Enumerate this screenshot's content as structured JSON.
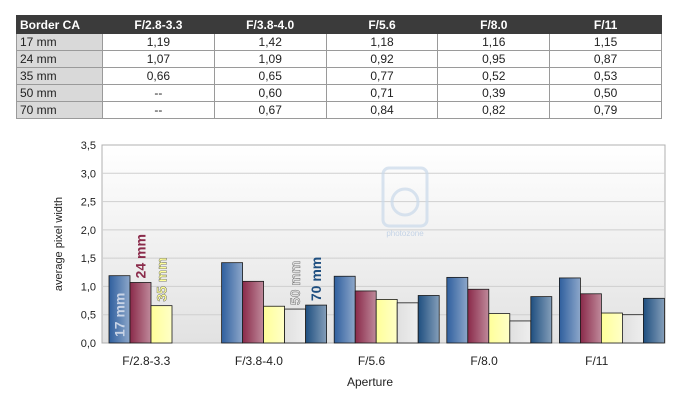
{
  "table": {
    "header": [
      "Border CA",
      "F/2.8-3.3",
      "F/3.8-4.0",
      "F/5.6",
      "F/8.0",
      "F/11"
    ],
    "rows": [
      [
        "17 mm",
        "1,19",
        "1,42",
        "1,18",
        "1,16",
        "1,15"
      ],
      [
        "24 mm",
        "1,07",
        "1,09",
        "0,92",
        "0,95",
        "0,87"
      ],
      [
        "35 mm",
        "0,66",
        "0,65",
        "0,77",
        "0,52",
        "0,53"
      ],
      [
        "50 mm",
        "--",
        "0,60",
        "0,71",
        "0,39",
        "0,50"
      ],
      [
        "70 mm",
        "--",
        "0,67",
        "0,84",
        "0,82",
        "0,79"
      ]
    ]
  },
  "chart_data": {
    "type": "bar",
    "categories": [
      "F/2.8-3.3",
      "F/3.8-4.0",
      "F/5.6",
      "F/8.0",
      "F/11"
    ],
    "series": [
      {
        "name": "17 mm",
        "values": [
          1.19,
          1.42,
          1.18,
          1.16,
          1.15
        ],
        "color": "#2f5f9e"
      },
      {
        "name": "24 mm",
        "values": [
          1.07,
          1.09,
          0.92,
          0.95,
          0.87
        ],
        "color": "#8a2a4a"
      },
      {
        "name": "35 mm",
        "values": [
          0.66,
          0.65,
          0.77,
          0.52,
          0.53
        ],
        "color": "#ffff99"
      },
      {
        "name": "50 mm",
        "values": [
          null,
          0.6,
          0.71,
          0.39,
          0.5
        ],
        "color": "#e0e0e0"
      },
      {
        "name": "70 mm",
        "values": [
          null,
          0.67,
          0.84,
          0.82,
          0.79
        ],
        "color": "#1f4f80"
      }
    ],
    "xlabel": "Aperture",
    "ylabel": "average pixel width",
    "ylim": [
      0,
      3.5
    ],
    "yticks": [
      "0,0",
      "0,5",
      "1,0",
      "1,5",
      "2,0",
      "2,5",
      "3,0",
      "3,5"
    ],
    "grid": true,
    "legend": "labels on bars of first group",
    "watermark": "photozone"
  }
}
